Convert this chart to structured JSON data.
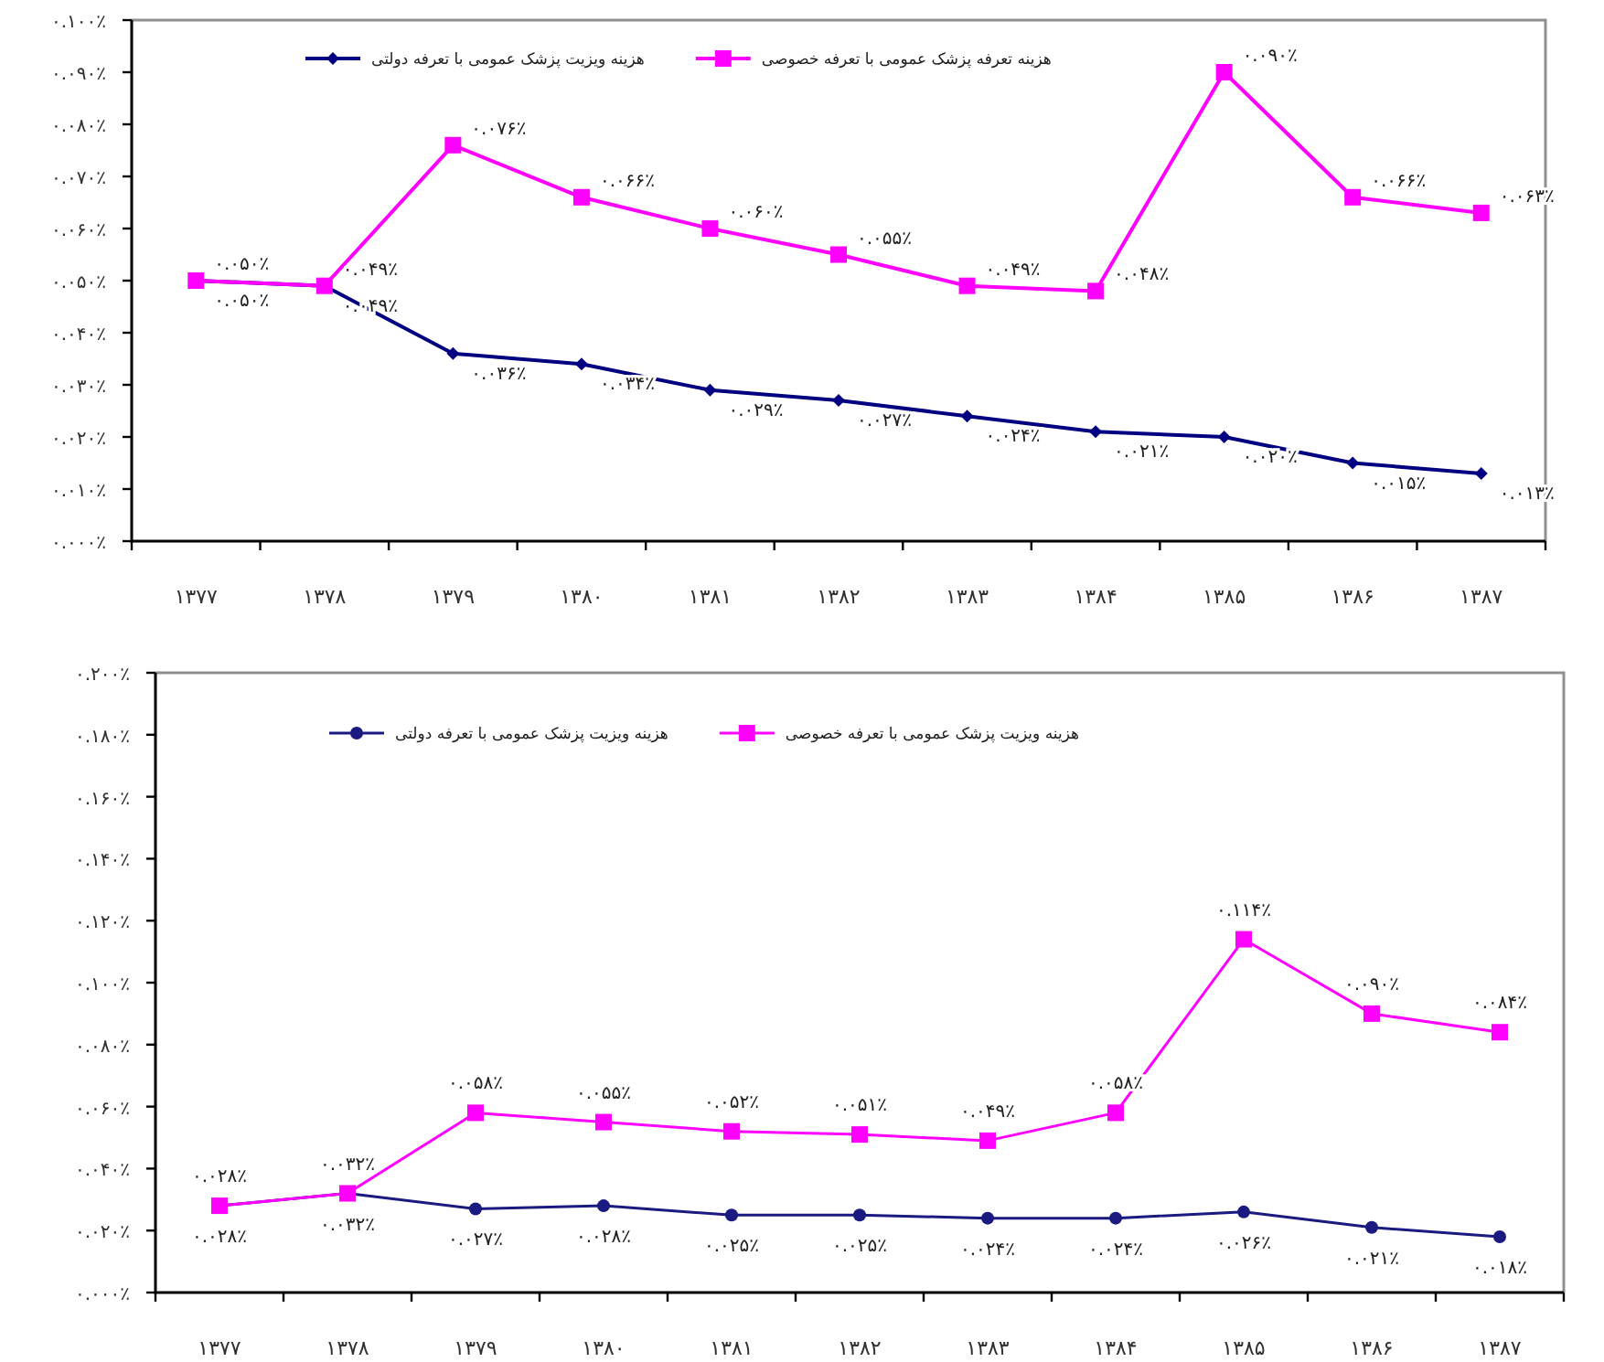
{
  "chart_data": [
    {
      "type": "line",
      "categories": [
        "۱۳۷۷",
        "۱۳۷۸",
        "۱۳۷۹",
        "۱۳۸۰",
        "۱۳۸۱",
        "۱۳۸۲",
        "۱۳۸۳",
        "۱۳۸۴",
        "۱۳۸۵",
        "۱۳۸۶",
        "۱۳۸۷"
      ],
      "series": [
        {
          "name": "هزینه ویزیت پزشک عمومی با تعرفه دولتی",
          "color": "#000080",
          "marker": "diamond",
          "values": [
            0.05,
            0.049,
            0.036,
            0.034,
            0.029,
            0.027,
            0.024,
            0.021,
            0.02,
            0.015,
            0.013
          ],
          "value_labels": [
            "۰.۰۵۰٪",
            "۰.۰۴۹٪",
            "۰.۰۳۶٪",
            "۰.۰۳۴٪",
            "۰.۰۲۹٪",
            "۰.۰۲۷٪",
            "۰.۰۲۴٪",
            "۰.۰۲۱٪",
            "۰.۰۲۰٪",
            "۰.۰۱۵٪",
            "۰.۰۱۳٪"
          ]
        },
        {
          "name": "هزینه تعرفه پزشک عمومی با تعرفه خصوصی",
          "color": "#ff00ff",
          "marker": "square",
          "values": [
            0.05,
            0.049,
            0.076,
            0.066,
            0.06,
            0.055,
            0.049,
            0.048,
            0.09,
            0.066,
            0.063
          ],
          "value_labels": [
            "۰.۰۵۰٪",
            "۰.۰۴۹٪",
            "۰.۰۷۶٪",
            "۰.۰۶۶٪",
            "۰.۰۶۰٪",
            "۰.۰۵۵٪",
            "۰.۰۴۹٪",
            "۰.۰۴۸٪",
            "۰.۰۹۰٪",
            "۰.۰۶۶٪",
            "۰.۰۶۳٪"
          ]
        }
      ],
      "ylim": [
        0,
        0.1
      ],
      "yticks": [
        {
          "value": 0,
          "label": "۰.۰۰۰٪"
        },
        {
          "value": 0.01,
          "label": "۰.۰۱۰٪"
        },
        {
          "value": 0.02,
          "label": "۰.۰۲۰٪"
        },
        {
          "value": 0.03,
          "label": "۰.۰۳۰٪"
        },
        {
          "value": 0.04,
          "label": "۰.۰۴۰٪"
        },
        {
          "value": 0.05,
          "label": "۰.۰۵۰٪"
        },
        {
          "value": 0.06,
          "label": "۰.۰۶۰٪"
        },
        {
          "value": 0.07,
          "label": "۰.۰۷۰٪"
        },
        {
          "value": 0.08,
          "label": "۰.۰۸۰٪"
        },
        {
          "value": 0.09,
          "label": "۰.۰۹۰٪"
        },
        {
          "value": 0.1,
          "label": "۰.۱۰۰٪"
        }
      ],
      "legend": "top"
    },
    {
      "type": "line",
      "categories": [
        "۱۳۷۷",
        "۱۳۷۸",
        "۱۳۷۹",
        "۱۳۸۰",
        "۱۳۸۱",
        "۱۳۸۲",
        "۱۳۸۳",
        "۱۳۸۴",
        "۱۳۸۵",
        "۱۳۸۶",
        "۱۳۸۷"
      ],
      "series": [
        {
          "name": "هزینه ویزیت پزشک عمومی با تعرفه دولتی",
          "color": "#1a1a80",
          "marker": "circle",
          "values": [
            0.028,
            0.032,
            0.027,
            0.028,
            0.025,
            0.025,
            0.024,
            0.024,
            0.026,
            0.021,
            0.018
          ],
          "value_labels": [
            "۰.۰۲۸٪",
            "۰.۰۳۲٪",
            "۰.۰۲۷٪",
            "۰.۰۲۸٪",
            "۰.۰۲۵٪",
            "۰.۰۲۵٪",
            "۰.۰۲۴٪",
            "۰.۰۲۴٪",
            "۰.۰۲۶٪",
            "۰.۰۲۱٪",
            "۰.۰۱۸٪"
          ]
        },
        {
          "name": "هزینه ویزیت پزشک عمومی با تعرفه خصوصی",
          "color": "#ff00ff",
          "marker": "square",
          "values": [
            0.028,
            0.032,
            0.058,
            0.055,
            0.052,
            0.051,
            0.049,
            0.058,
            0.114,
            0.09,
            0.084
          ],
          "value_labels": [
            "۰.۰۲۸٪",
            "۰.۰۳۲٪",
            "۰.۰۵۸٪",
            "۰.۰۵۵٪",
            "۰.۰۵۲٪",
            "۰.۰۵۱٪",
            "۰.۰۴۹٪",
            "۰.۰۵۸٪",
            "۰.۱۱۴٪",
            "۰.۰۹۰٪",
            "۰.۰۸۴٪"
          ]
        }
      ],
      "ylim": [
        0,
        0.2
      ],
      "yticks": [
        {
          "value": 0,
          "label": "۰.۰۰۰٪"
        },
        {
          "value": 0.02,
          "label": "۰.۰۲۰٪"
        },
        {
          "value": 0.04,
          "label": "۰.۰۴۰٪"
        },
        {
          "value": 0.06,
          "label": "۰.۰۶۰٪"
        },
        {
          "value": 0.08,
          "label": "۰.۰۸۰٪"
        },
        {
          "value": 0.1,
          "label": "۰.۱۰۰٪"
        },
        {
          "value": 0.12,
          "label": "۰.۱۲۰٪"
        },
        {
          "value": 0.14,
          "label": "۰.۱۴۰٪"
        },
        {
          "value": 0.16,
          "label": "۰.۱۶۰٪"
        },
        {
          "value": 0.18,
          "label": "۰.۱۸۰٪"
        },
        {
          "value": 0.2,
          "label": "۰.۲۰۰٪"
        }
      ],
      "legend": "top"
    }
  ]
}
